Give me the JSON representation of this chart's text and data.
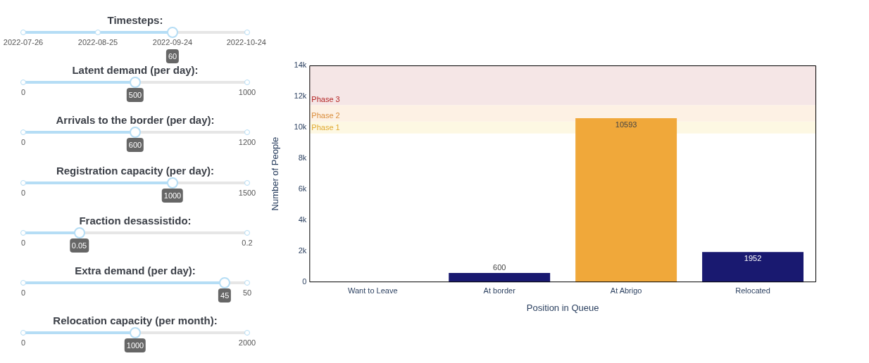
{
  "chart_data": [
    {
      "type": "other",
      "annotations": [
        "Timesteps:",
        "2022-07-26",
        "2022-08-25",
        "2022-09-24",
        "2022-10-24",
        "60",
        "Latent demand (per day):",
        "0",
        "1000",
        "500",
        "Arrivals to the border (per day):",
        "0",
        "1200",
        "600",
        "Registration capacity (per day):",
        "0",
        "1500",
        "1000",
        "Fraction desassistido:",
        "0",
        "0.2",
        "0.05",
        "Extra demand (per day):",
        "0",
        "50",
        "45",
        "Relocation capacity (per month):",
        "0",
        "2000",
        "1000"
      ]
    },
    {
      "type": "bar",
      "xlabel": "Position in Queue",
      "ylabel": "Number of People",
      "categories": [
        "Want to Leave",
        "At border",
        "At Abrigo",
        "Relocated"
      ],
      "values": [
        0,
        600,
        10593,
        1952
      ],
      "colors": [
        "#191970",
        "#191970",
        "#f0a83a",
        "#191970"
      ],
      "value_labels": [
        null,
        "600",
        "10593",
        "1952"
      ],
      "ylim": [
        0,
        14000
      ],
      "yticks": [
        0,
        {
          "value": 2000,
          "label": "2k"
        },
        {
          "value": 4000,
          "label": "4k"
        },
        {
          "value": 6000,
          "label": "6k"
        },
        {
          "value": 8000,
          "label": "8k"
        },
        {
          "value": 10000,
          "label": "10k"
        },
        {
          "value": 12000,
          "label": "12k"
        },
        {
          "value": 14000,
          "label": "14k"
        }
      ],
      "grid": false,
      "legend": false,
      "bands": [
        {
          "axis": "y",
          "from": 9600,
          "to": 10380,
          "label": "Phase 1",
          "color": "#fdf8e3"
        },
        {
          "axis": "y",
          "from": 10380,
          "to": 11450,
          "label": "Phase 2",
          "color": "#fdf1e4"
        },
        {
          "axis": "y",
          "from": 11450,
          "to": 14000,
          "label": "Phase 3",
          "color": "#f5e6e6"
        }
      ]
    }
  ]
}
